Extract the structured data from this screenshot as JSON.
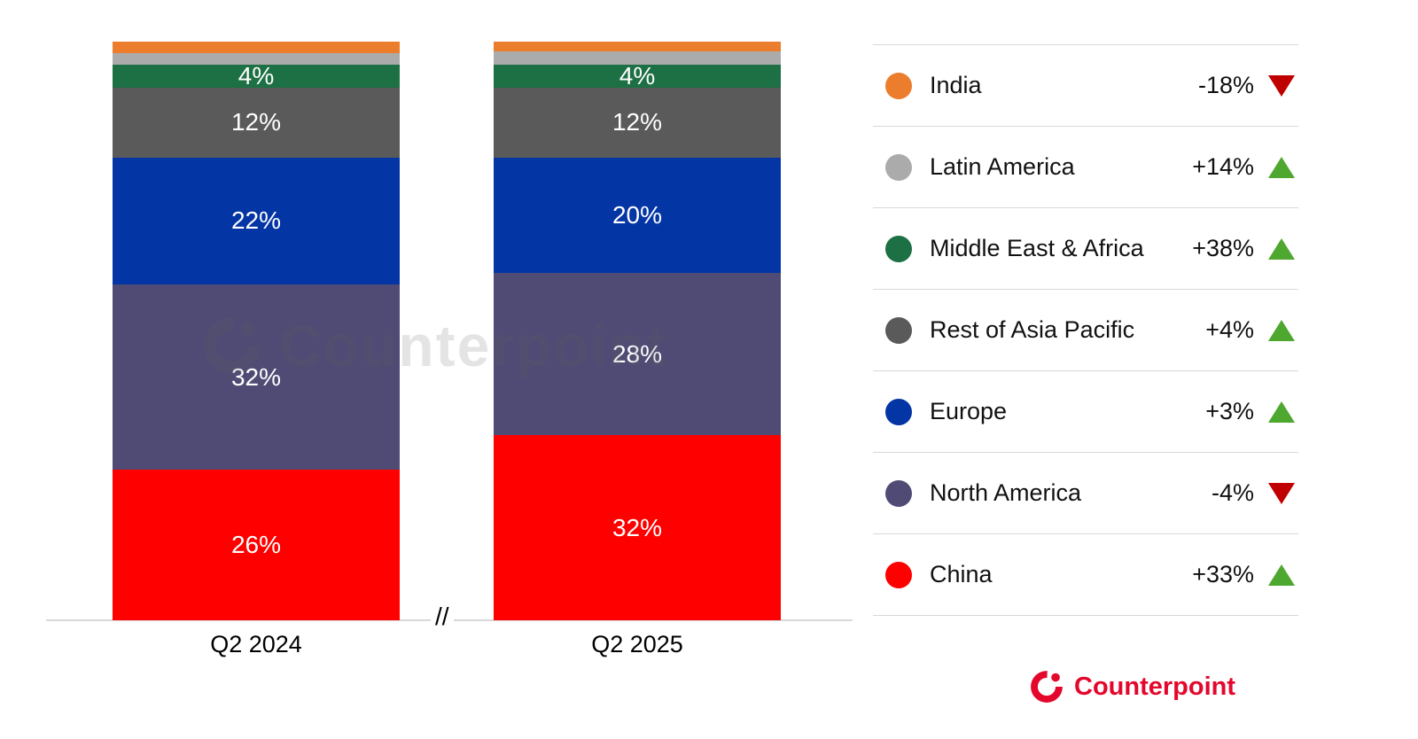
{
  "chart_data": {
    "type": "bar",
    "subtype": "stacked-percent",
    "title": "",
    "categories": [
      "Q2 2024",
      "Q2 2025"
    ],
    "unit": "%",
    "ylim": [
      0,
      100
    ],
    "grid": false,
    "legend_position": "right",
    "axis_break_symbol": "//",
    "series": [
      {
        "name": "China",
        "color": "#fe0000",
        "values": [
          26,
          32
        ],
        "labels": [
          "26%",
          "32%"
        ],
        "yoy_change": "+33%",
        "trend": "up"
      },
      {
        "name": "North America",
        "color": "#4f4b74",
        "values": [
          32,
          28
        ],
        "labels": [
          "32%",
          "28%"
        ],
        "yoy_change": "-4%",
        "trend": "down"
      },
      {
        "name": "Europe",
        "color": "#0435a5",
        "values": [
          22,
          20
        ],
        "labels": [
          "22%",
          "20%"
        ],
        "yoy_change": "+3%",
        "trend": "up"
      },
      {
        "name": "Rest of Asia Pacific",
        "color": "#5a5a5a",
        "values": [
          12,
          12
        ],
        "labels": [
          "12%",
          "12%"
        ],
        "yoy_change": "+4%",
        "trend": "up"
      },
      {
        "name": "Middle East & Africa",
        "color": "#1d7044",
        "values": [
          4,
          4
        ],
        "labels": [
          "4%",
          "4%"
        ],
        "yoy_change": "+38%",
        "trend": "up"
      },
      {
        "name": "Latin America",
        "color": "#ababab",
        "values": [
          2,
          2.3
        ],
        "labels": [
          "",
          ""
        ],
        "yoy_change": "+14%",
        "trend": "up"
      },
      {
        "name": "India",
        "color": "#ec7d2d",
        "values": [
          2,
          1.7
        ],
        "labels": [
          "",
          ""
        ],
        "yoy_change": "-18%",
        "trend": "down"
      }
    ],
    "trend_colors": {
      "up": "#4ea72e",
      "down": "#c00000"
    }
  },
  "branding": {
    "watermark_text": "Counterpoint",
    "logo_text": "Counterpoint",
    "logo_color": "#e4072c"
  }
}
